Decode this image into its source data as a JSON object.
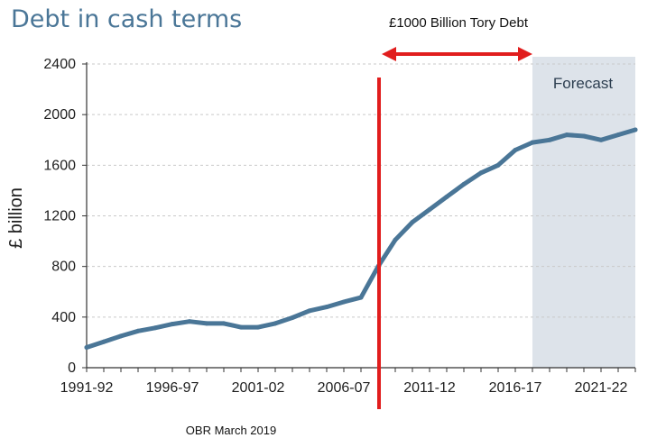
{
  "chart_data": {
    "type": "line",
    "title": "Debt in cash terms",
    "ylabel": "£ billion",
    "xlabel": "",
    "ylim": [
      0,
      2400
    ],
    "yticks": [
      0,
      400,
      800,
      1200,
      1600,
      2000,
      2400
    ],
    "ytick_labels": [
      "0",
      "400",
      "800",
      "1200",
      "1600",
      "2000",
      "2400"
    ],
    "xtick_labels": [
      "1991-92",
      "1996-97",
      "2001-02",
      "2006-07",
      "2011-12",
      "2016-17",
      "2021-22"
    ],
    "grid": true,
    "line_color": "#4a7697",
    "forecast_shade_color": "#dde3ea",
    "x": [
      "1991-92",
      "1992-93",
      "1993-94",
      "1994-95",
      "1995-96",
      "1996-97",
      "1997-98",
      "1998-99",
      "1999-00",
      "2000-01",
      "2001-02",
      "2002-03",
      "2003-04",
      "2004-05",
      "2005-06",
      "2006-07",
      "2007-08",
      "2008-09",
      "2009-10",
      "2010-11",
      "2011-12",
      "2012-13",
      "2013-14",
      "2014-15",
      "2015-16",
      "2016-17",
      "2017-18",
      "2018-19",
      "2019-20",
      "2020-21",
      "2021-22",
      "2022-23",
      "2023-24"
    ],
    "series": [
      {
        "values": [
          160,
          205,
          250,
          290,
          315,
          345,
          365,
          350,
          350,
          320,
          320,
          350,
          395,
          450,
          480,
          520,
          555,
          800,
          1010,
          1150,
          1250,
          1350,
          1450,
          1540,
          1600,
          1720,
          1780,
          1800,
          1840,
          1830,
          1800,
          1840,
          1880
        ]
      }
    ],
    "forecast": {
      "label": "Forecast",
      "start": "2017-18",
      "end": "2023-24"
    },
    "annotations": {
      "text": "£1000 Billion Tory Debt",
      "marker_line_at": "2008-09",
      "marker_color": "#e11d1d",
      "arrow_from": "2008-09",
      "arrow_to": "2017-18"
    },
    "source": "OBR March 2019"
  }
}
